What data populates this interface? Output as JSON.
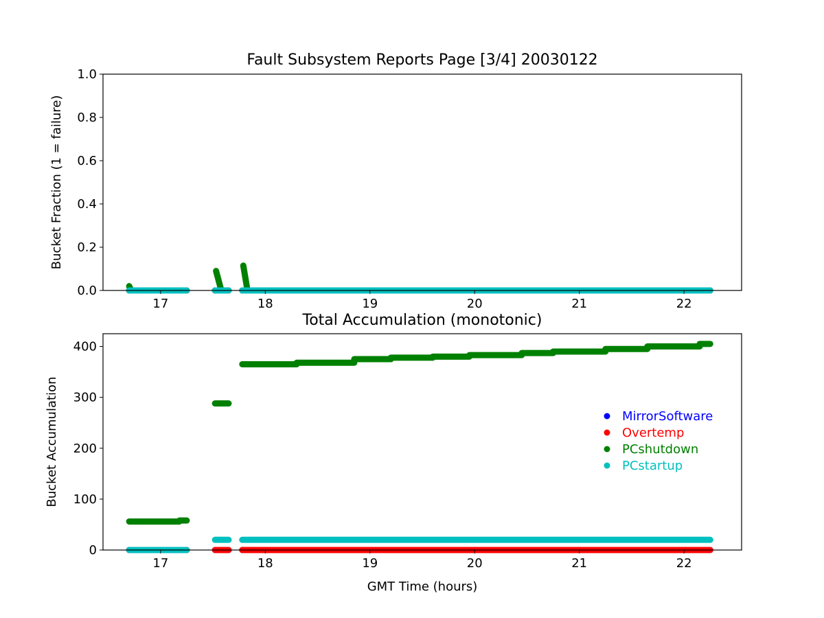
{
  "colors": {
    "MirrorSoftware": "#0000ff",
    "Overtemp": "#ff0000",
    "PCshutdown": "#008000",
    "PCstartup": "#00bfbf"
  },
  "chart_data": [
    {
      "type": "scatter",
      "title": "Fault Subsystem Reports Page [3/4] 20030122",
      "xlabel": "",
      "ylabel": "Bucket Fraction (1 = failure)",
      "xlim": [
        16.45,
        22.55
      ],
      "ylim": [
        0.0,
        1.0
      ],
      "xticks": [
        17,
        18,
        19,
        20,
        21,
        22
      ],
      "yticks": [
        0.0,
        0.2,
        0.4,
        0.6,
        0.8,
        1.0
      ],
      "xtick_labels": [
        "17",
        "18",
        "19",
        "20",
        "21",
        "22"
      ],
      "ytick_labels": [
        "0.0",
        "0.2",
        "0.4",
        "0.6",
        "0.8",
        "1.0"
      ],
      "series": [
        {
          "name": "MirrorSoftware",
          "segments": [
            [
              16.7,
              17.25,
              0
            ],
            [
              17.52,
              17.65,
              0
            ],
            [
              17.78,
              22.25,
              0
            ]
          ]
        },
        {
          "name": "Overtemp",
          "segments": [
            [
              16.7,
              17.25,
              0
            ],
            [
              17.52,
              17.65,
              0
            ],
            [
              17.78,
              22.25,
              0
            ]
          ]
        },
        {
          "name": "PCshutdown",
          "segments": [
            [
              16.7,
              17.25,
              0
            ],
            [
              17.52,
              17.65,
              0
            ],
            [
              17.78,
              22.25,
              0
            ]
          ],
          "spikes": [
            [
              16.7,
              16.72,
              0.02,
              0.0
            ],
            [
              17.53,
              17.58,
              0.09,
              0.0
            ],
            [
              17.79,
              17.83,
              0.115,
              0.0
            ]
          ]
        },
        {
          "name": "PCstartup",
          "segments": [
            [
              16.7,
              17.25,
              0
            ],
            [
              17.52,
              17.65,
              0
            ],
            [
              17.78,
              22.25,
              0
            ]
          ]
        }
      ]
    },
    {
      "type": "scatter",
      "title": "Total Accumulation (monotonic)",
      "xlabel": "GMT Time (hours)",
      "ylabel": "Bucket Accumulation",
      "xlim": [
        16.45,
        22.55
      ],
      "ylim": [
        0,
        425
      ],
      "xticks": [
        17,
        18,
        19,
        20,
        21,
        22
      ],
      "yticks": [
        0,
        100,
        200,
        300,
        400
      ],
      "xtick_labels": [
        "17",
        "18",
        "19",
        "20",
        "21",
        "22"
      ],
      "ytick_labels": [
        "0",
        "100",
        "200",
        "300",
        "400"
      ],
      "legend": {
        "placement": "center-right",
        "entries": [
          "MirrorSoftware",
          "Overtemp",
          "PCshutdown",
          "PCstartup"
        ]
      },
      "series": [
        {
          "name": "MirrorSoftware",
          "segments": [
            [
              16.7,
              17.25,
              0
            ],
            [
              17.52,
              17.65,
              0
            ],
            [
              17.78,
              22.25,
              0
            ]
          ]
        },
        {
          "name": "Overtemp",
          "segments": [
            [
              16.7,
              17.25,
              0
            ],
            [
              17.52,
              17.65,
              0
            ],
            [
              17.78,
              22.25,
              0
            ]
          ]
        },
        {
          "name": "PCshutdown",
          "segments": [
            [
              16.7,
              17.18,
              56
            ],
            [
              17.18,
              17.25,
              58
            ],
            [
              17.52,
              17.65,
              288
            ],
            [
              17.78,
              18.3,
              365
            ],
            [
              18.3,
              18.85,
              368
            ],
            [
              18.85,
              19.2,
              375
            ],
            [
              19.2,
              19.6,
              378
            ],
            [
              19.6,
              19.95,
              380
            ],
            [
              19.95,
              20.45,
              383
            ],
            [
              20.45,
              20.75,
              387
            ],
            [
              20.75,
              21.25,
              390
            ],
            [
              21.25,
              21.65,
              395
            ],
            [
              21.65,
              22.15,
              400
            ],
            [
              22.15,
              22.25,
              405
            ]
          ]
        },
        {
          "name": "PCstartup",
          "segments": [
            [
              16.7,
              17.25,
              0
            ],
            [
              17.52,
              17.65,
              20
            ],
            [
              17.78,
              22.25,
              20
            ]
          ]
        }
      ]
    }
  ]
}
